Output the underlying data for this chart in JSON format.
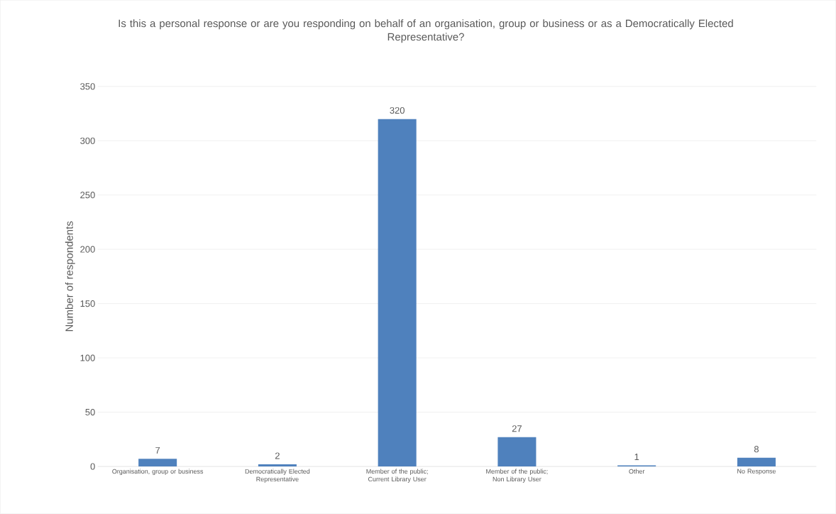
{
  "chart_data": {
    "type": "bar",
    "title": "Is this a personal response or are you responding on behalf of an organisation, group or business or as a Democratically Elected Representative?",
    "ylabel": "Number of respondents",
    "categories": [
      "Organisation, group or business",
      "Democratically Elected Representative",
      "Member of the public; Current Library User",
      "Member of the public; Non Library User",
      "Other",
      "No Response"
    ],
    "values": [
      7,
      2,
      320,
      27,
      1,
      8
    ],
    "color": "#4f81bd",
    "ylim": [
      0,
      350
    ],
    "yticks": [
      0,
      50,
      100,
      150,
      200,
      250,
      300,
      350
    ],
    "grid": "y",
    "data_labels": true
  }
}
